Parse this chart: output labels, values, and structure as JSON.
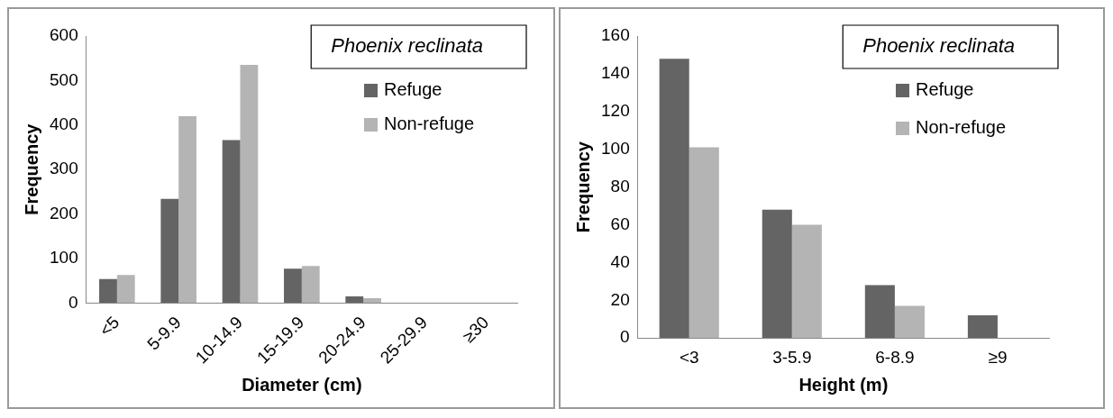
{
  "chart_data": [
    {
      "type": "bar",
      "title": "Phoenix reclinata",
      "xlabel": "Diameter (cm)",
      "ylabel": "Frequency",
      "categories": [
        "<5",
        "5-9.9",
        "10-14.9",
        "15-19.9",
        "20-24.9",
        "25-29.9",
        "≥30"
      ],
      "series": [
        {
          "name": "Refuge",
          "color": "#646464",
          "values": [
            54,
            234,
            366,
            77,
            15,
            null,
            0
          ]
        },
        {
          "name": "Non-refuge",
          "color": "#b4b4b4",
          "values": [
            63,
            420,
            535,
            83,
            11,
            null,
            0
          ]
        }
      ],
      "ylim": [
        0,
        600
      ],
      "yticks": [
        0,
        100,
        200,
        300,
        400,
        500,
        600
      ],
      "grid": false,
      "legend": "top right"
    },
    {
      "type": "bar",
      "title": "Phoenix reclinata",
      "xlabel": "Height (m)",
      "ylabel": "Frequency",
      "categories": [
        "<3",
        "3-5.9",
        "6-8.9",
        "≥9"
      ],
      "series": [
        {
          "name": "Refuge",
          "color": "#646464",
          "values": [
            148,
            68,
            28,
            12
          ]
        },
        {
          "name": "Non-refuge",
          "color": "#b4b4b4",
          "values": [
            101,
            60,
            17,
            0
          ]
        }
      ],
      "ylim": [
        0,
        160
      ],
      "yticks": [
        0,
        20,
        40,
        60,
        80,
        100,
        120,
        140,
        160
      ],
      "grid": false,
      "legend": "top right"
    }
  ]
}
